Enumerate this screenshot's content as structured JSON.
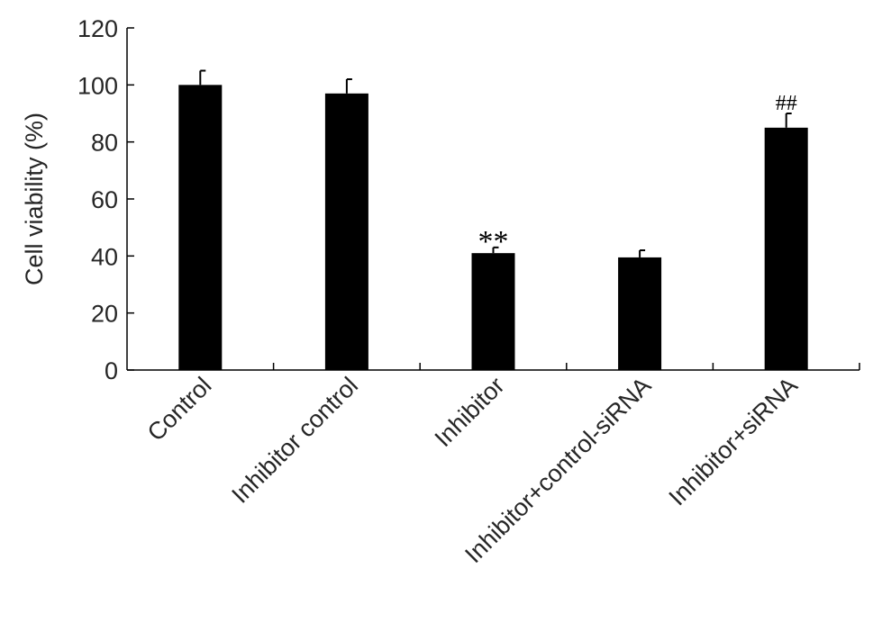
{
  "chart_data": {
    "type": "bar",
    "title": "",
    "xlabel": "",
    "ylabel": "Cell viability (%)",
    "ylim": [
      0,
      120
    ],
    "yticks": [
      0,
      20,
      40,
      60,
      80,
      100,
      120
    ],
    "categories": [
      "Control",
      "Inhibitor control",
      "Inhibitor",
      "Inhibitor+control-siRNA",
      "Inhibitor+siRNA"
    ],
    "values": [
      100,
      97,
      41,
      39.5,
      85
    ],
    "errors": [
      5,
      5,
      2,
      2.5,
      5
    ],
    "annotations": [
      "",
      "",
      "**",
      "",
      "##"
    ],
    "bar_color": "#000000",
    "grid": false,
    "legend": "none"
  }
}
